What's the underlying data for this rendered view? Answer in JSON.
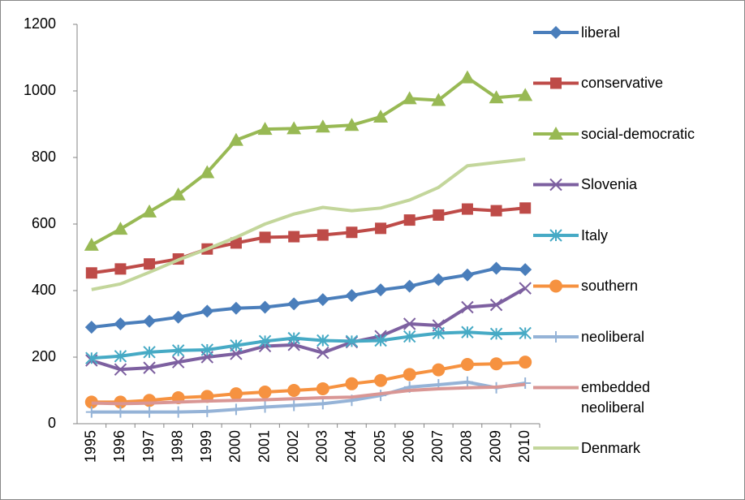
{
  "chart_data": {
    "type": "line",
    "categories": [
      "1995",
      "1996",
      "1997",
      "1998",
      "1999",
      "2000",
      "2001",
      "2002",
      "2003",
      "2004",
      "2005",
      "2006",
      "2007",
      "2008",
      "2009",
      "2010"
    ],
    "ylim": [
      0,
      1200
    ],
    "yticks": [
      0,
      200,
      400,
      600,
      800,
      1000,
      1200
    ],
    "grid": false,
    "legend": "right",
    "series": [
      {
        "name": "liberal",
        "color": "#4a7ebb",
        "marker": "diamond",
        "values": [
          290,
          300,
          308,
          320,
          338,
          347,
          350,
          360,
          373,
          385,
          402,
          413,
          433,
          447,
          467,
          463
        ]
      },
      {
        "name": "conservative",
        "color": "#be4b48",
        "marker": "square",
        "values": [
          453,
          465,
          480,
          495,
          525,
          543,
          560,
          562,
          567,
          575,
          587,
          612,
          627,
          645,
          640,
          648
        ]
      },
      {
        "name": "social-democratic",
        "color": "#98b954",
        "marker": "triangle",
        "values": [
          537,
          585,
          637,
          688,
          755,
          852,
          885,
          887,
          892,
          897,
          922,
          977,
          972,
          1040,
          980,
          987
        ]
      },
      {
        "name": "Slovenia",
        "color": "#7d60a0",
        "marker": "x",
        "values": [
          190,
          163,
          168,
          185,
          200,
          210,
          233,
          237,
          213,
          245,
          263,
          300,
          295,
          350,
          357,
          407
        ]
      },
      {
        "name": "Italy",
        "color": "#46aac5",
        "marker": "asterisk",
        "values": [
          197,
          203,
          215,
          220,
          222,
          235,
          248,
          257,
          250,
          248,
          250,
          262,
          272,
          275,
          270,
          272
        ]
      },
      {
        "name": "southern",
        "color": "#f69240",
        "marker": "circle",
        "values": [
          65,
          65,
          70,
          78,
          82,
          90,
          95,
          100,
          105,
          120,
          130,
          148,
          162,
          178,
          180,
          185
        ]
      },
      {
        "name": "neoliberal",
        "color": "#95b3d7",
        "marker": "plus",
        "values": [
          35,
          35,
          35,
          35,
          37,
          43,
          50,
          55,
          60,
          70,
          85,
          110,
          117,
          125,
          108,
          122
        ]
      },
      {
        "name": "embedded neoliberal",
        "color": "#d99694",
        "marker": "none",
        "values": [
          62,
          60,
          62,
          65,
          68,
          70,
          72,
          75,
          78,
          80,
          90,
          100,
          105,
          108,
          110,
          118
        ]
      },
      {
        "name": "Denmark",
        "color": "#c3d69b",
        "marker": "none",
        "values": [
          403,
          420,
          455,
          492,
          525,
          560,
          600,
          630,
          650,
          640,
          648,
          672,
          710,
          775,
          785,
          795
        ]
      }
    ]
  }
}
